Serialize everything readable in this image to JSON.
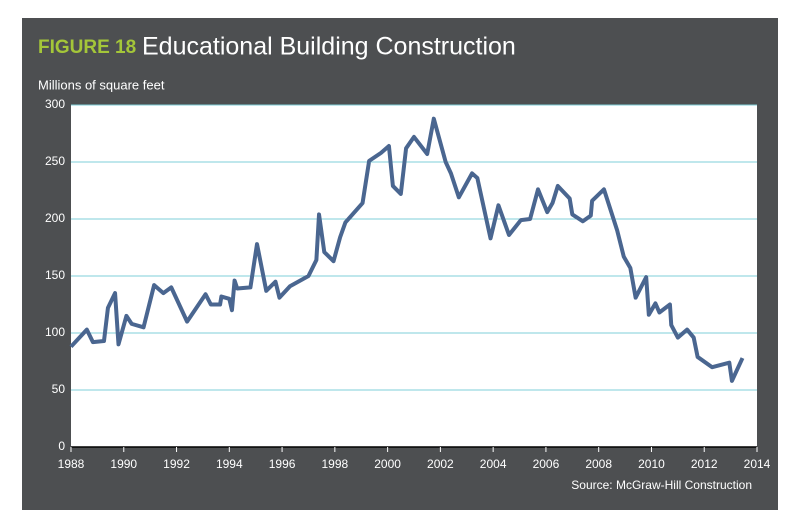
{
  "chart_data": {
    "type": "line",
    "figure_label": "FIGURE 18",
    "title": "Educational Building Construction",
    "y_label": "Millions of square feet",
    "source": "Source: McGraw-Hill Construction",
    "x": [
      1988.0,
      1988.6,
      1988.83,
      1989.25,
      1989.4,
      1989.67,
      1989.8,
      1990.1,
      1990.3,
      1990.75,
      1991.15,
      1991.5,
      1991.8,
      1992.4,
      1993.1,
      1993.3,
      1993.65,
      1993.7,
      1994.0,
      1994.1,
      1994.2,
      1994.3,
      1994.8,
      1995.05,
      1995.4,
      1995.75,
      1995.9,
      1996.3,
      1997.0,
      1997.3,
      1997.4,
      1997.6,
      1997.95,
      1998.2,
      1998.4,
      1999.05,
      1999.3,
      1999.75,
      2000.05,
      2000.2,
      2000.5,
      2000.7,
      2001.0,
      2001.5,
      2001.75,
      2002.2,
      2002.4,
      2002.7,
      2003.2,
      2003.4,
      2003.9,
      2004.2,
      2004.6,
      2005.05,
      2005.4,
      2005.7,
      2006.05,
      2006.25,
      2006.45,
      2006.9,
      2007.0,
      2007.4,
      2007.7,
      2007.75,
      2008.2,
      2008.7,
      2008.95,
      2009.2,
      2009.4,
      2009.8,
      2009.9,
      2010.15,
      2010.3,
      2010.7,
      2010.75,
      2011.0,
      2011.35,
      2011.6,
      2011.75,
      2012.3,
      2012.95,
      2013.05,
      2013.45
    ],
    "values": [
      88,
      103,
      92,
      93,
      122,
      135,
      90,
      115,
      108,
      105,
      142,
      135,
      140,
      110,
      134,
      125,
      125,
      132,
      130,
      120,
      146,
      139,
      140,
      178,
      137,
      145,
      131,
      141,
      150,
      164,
      204,
      171,
      163,
      184,
      197,
      214,
      251,
      258,
      264,
      229,
      222,
      262,
      272,
      257,
      288,
      250,
      240,
      219,
      240,
      236,
      183,
      212,
      186,
      199,
      200,
      226,
      206,
      214,
      229,
      218,
      204,
      198,
      203,
      216,
      226,
      190,
      167,
      157,
      131,
      149,
      116,
      126,
      118,
      125,
      107,
      96,
      103,
      96,
      79,
      70,
      74,
      58,
      78
    ],
    "color": "#4a6690",
    "grid_color": "#7fcfd8",
    "xlim": [
      1988,
      2014
    ],
    "xticks": [
      1988,
      1990,
      1992,
      1994,
      1996,
      1998,
      2000,
      2002,
      2004,
      2006,
      2008,
      2010,
      2012,
      2014
    ],
    "ylim": [
      0,
      300
    ],
    "yticks": [
      0,
      50,
      100,
      150,
      200,
      250,
      300
    ],
    "grid": true
  }
}
